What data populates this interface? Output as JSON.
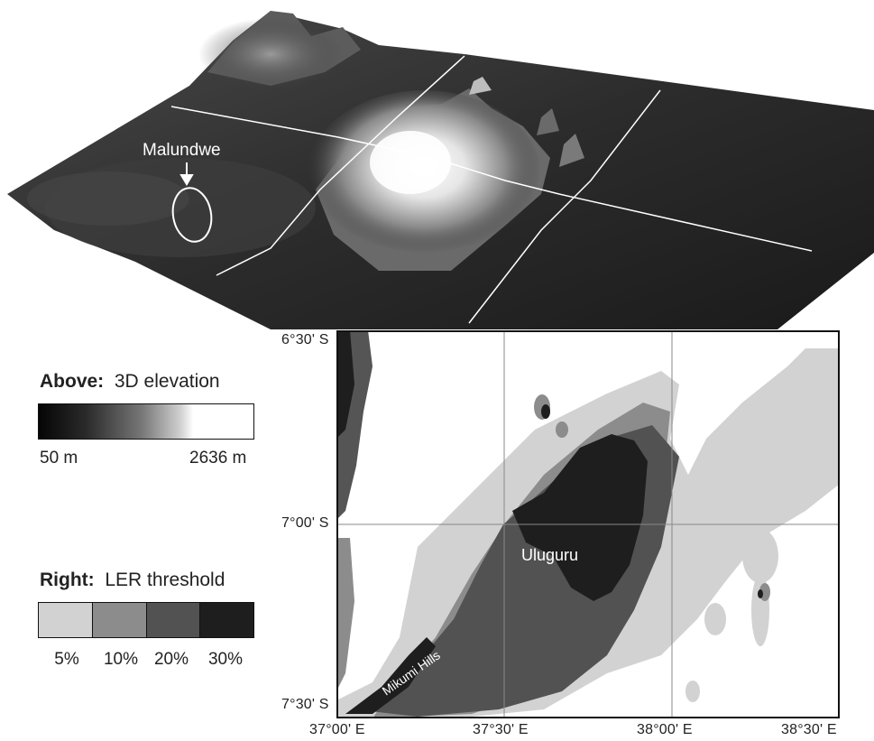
{
  "terrain": {
    "site_label": "Malundwe"
  },
  "legend_elevation": {
    "title_bold": "Above:",
    "title_rest": "3D elevation",
    "min_label": "50 m",
    "max_label": "2636 m"
  },
  "legend_ler": {
    "title_bold": "Right:",
    "title_rest": "LER threshold",
    "classes": [
      {
        "label": "5%",
        "color": "#d2d2d2"
      },
      {
        "label": "10%",
        "color": "#8c8c8c"
      },
      {
        "label": "20%",
        "color": "#525252"
      },
      {
        "label": "30%",
        "color": "#1e1e1e"
      }
    ]
  },
  "map": {
    "lat_labels": [
      "6°30' S",
      "7°00' S",
      "7°30' S"
    ],
    "lon_labels": [
      "37°00' E",
      "37°30' E",
      "38°00' E",
      "38°30' E"
    ],
    "place_uluguru": "Uluguru",
    "place_mikumi": "Mikumi Hills"
  }
}
